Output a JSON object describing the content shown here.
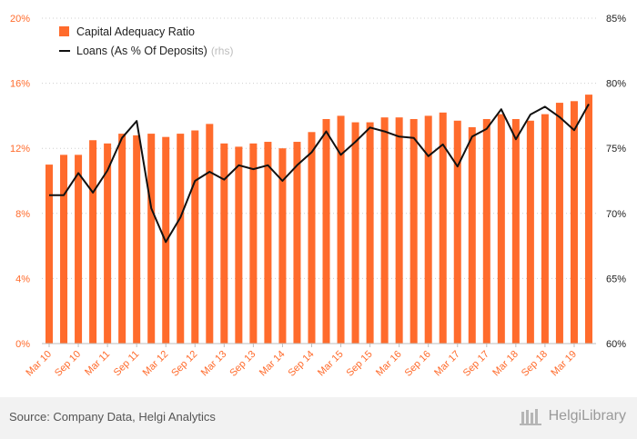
{
  "chart_data": {
    "type": "bar",
    "categories": [
      "Mar 10",
      "Jun 10",
      "Sep 10",
      "Dec 10",
      "Mar 11",
      "Jun 11",
      "Sep 11",
      "Dec 11",
      "Mar 12",
      "Jun 12",
      "Sep 12",
      "Dec 12",
      "Mar 13",
      "Jun 13",
      "Sep 13",
      "Dec 13",
      "Mar 14",
      "Jun 14",
      "Sep 14",
      "Dec 14",
      "Mar 15",
      "Jun 15",
      "Sep 15",
      "Dec 15",
      "Mar 16",
      "Jun 16",
      "Sep 16",
      "Dec 16",
      "Mar 17",
      "Jun 17",
      "Sep 17",
      "Dec 17",
      "Mar 18",
      "Jun 18",
      "Sep 18",
      "Dec 18",
      "Mar 19",
      "Jun 19"
    ],
    "x_tick_labels": [
      "Mar 10",
      "Sep 10",
      "Mar 11",
      "Sep 11",
      "Mar 12",
      "Sep 12",
      "Mar 13",
      "Sep 13",
      "Mar 14",
      "Sep 14",
      "Mar 15",
      "Sep 15",
      "Mar 16",
      "Sep 16",
      "Mar 17",
      "Sep 17",
      "Mar 18",
      "Sep 18",
      "Mar 19"
    ],
    "series": [
      {
        "name": "Capital Adequacy Ratio",
        "type": "bar",
        "axis": "left",
        "color": "#ff6b2c",
        "values": [
          11.0,
          11.6,
          11.6,
          12.5,
          12.3,
          12.9,
          12.8,
          12.9,
          12.7,
          12.9,
          13.1,
          13.5,
          12.3,
          12.1,
          12.3,
          12.4,
          12.0,
          12.4,
          13.0,
          13.8,
          14.0,
          13.6,
          13.6,
          13.9,
          13.9,
          13.8,
          14.0,
          14.2,
          13.7,
          13.3,
          13.8,
          14.1,
          13.8,
          13.7,
          14.1,
          14.8,
          14.9,
          15.3
        ]
      },
      {
        "name": "Loans (As % Of Deposits)",
        "type": "line",
        "axis": "right",
        "color": "#111111",
        "values": [
          71.4,
          71.4,
          73.1,
          71.6,
          73.3,
          75.8,
          77.1,
          70.4,
          67.8,
          69.7,
          72.5,
          73.2,
          72.6,
          73.7,
          73.4,
          73.7,
          72.5,
          73.7,
          74.7,
          76.3,
          74.5,
          75.5,
          76.6,
          76.3,
          75.9,
          75.8,
          74.4,
          75.3,
          73.6,
          75.9,
          76.5,
          78.0,
          75.7,
          77.6,
          78.2,
          77.4,
          76.4,
          78.4
        ]
      }
    ],
    "yaxis_left": {
      "ylim": [
        0,
        20
      ],
      "ticks": [
        "0%",
        "4%",
        "8%",
        "12%",
        "16%",
        "20%"
      ]
    },
    "yaxis_right": {
      "ylim": [
        60,
        85
      ],
      "ticks": [
        "60%",
        "65%",
        "70%",
        "75%",
        "80%",
        "85%"
      ]
    },
    "legend": {
      "placement": "top-left",
      "items": [
        "Capital Adequacy Ratio",
        "Loans (As % Of Deposits)"
      ],
      "rhs_label": "(rhs)"
    },
    "grid": "horizontal-dotted",
    "colors": {
      "bar": "#ff6b2c",
      "line": "#111111",
      "left_axis": "#ff6b2c"
    }
  },
  "footer": {
    "source": "Source: Company Data, Helgi Analytics",
    "brand": "HelgiLibrary"
  }
}
